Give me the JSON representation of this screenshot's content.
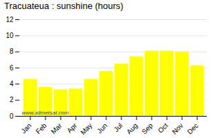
{
  "chart_data": {
    "type": "bar",
    "title": "Tracuateua : sunshine (hours)",
    "categories": [
      "Jan",
      "Feb",
      "Mar",
      "Apr",
      "May",
      "Jun",
      "Jul",
      "Aug",
      "Sep",
      "Oct",
      "Nov",
      "Dec"
    ],
    "values": [
      4.6,
      3.6,
      3.3,
      3.4,
      4.6,
      5.6,
      6.5,
      7.4,
      8.1,
      8.1,
      8.0,
      6.3
    ],
    "color": "#FFFF00",
    "ylim": [
      0,
      12
    ],
    "yticks": [
      0,
      2,
      4,
      6,
      8,
      10,
      12
    ],
    "grid": true,
    "annotations": [
      "www.allmetsat.com"
    ]
  }
}
